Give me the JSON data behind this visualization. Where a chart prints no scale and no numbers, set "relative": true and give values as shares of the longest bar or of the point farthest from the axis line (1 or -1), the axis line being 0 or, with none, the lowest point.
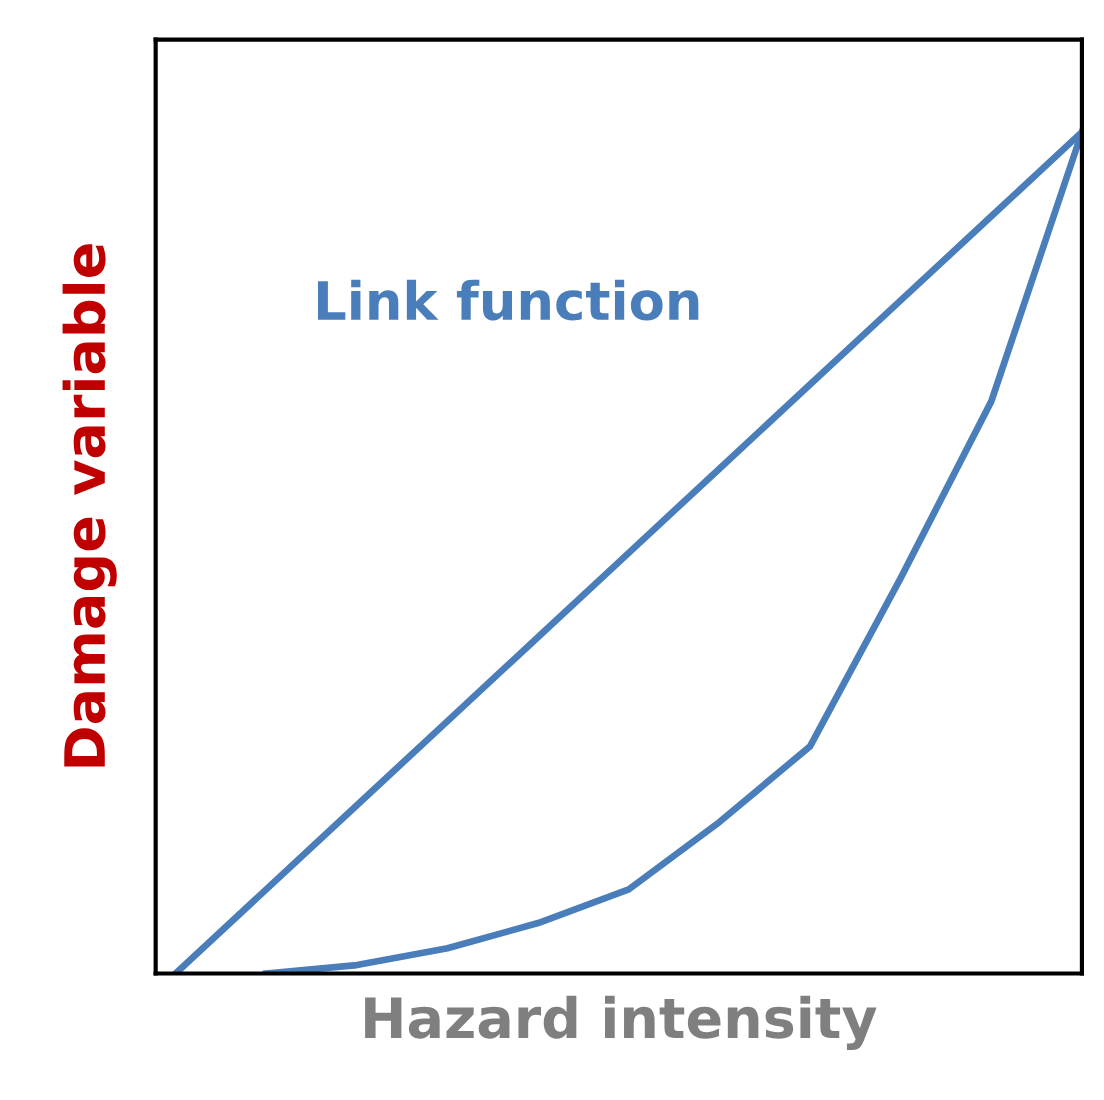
{
  "chart_data": {
    "type": "line",
    "relative": true,
    "xlabel": "Hazard intensity",
    "ylabel": "Damage variable",
    "annotations": [
      "Link function"
    ],
    "categories": [
      null,
      null,
      null,
      null,
      null,
      null,
      null,
      null,
      null,
      null,
      null
    ],
    "series": [
      {
        "color": "#4a7ebb",
        "values": [
          0,
          0.1,
          0.2,
          0.3,
          0.4,
          0.5,
          0.6,
          0.7,
          0.8,
          0.9,
          1
        ]
      },
      {
        "color": "#4a7ebb",
        "values": [
          null,
          0,
          0.01,
          0.03,
          0.06,
          0.1,
          0.18,
          0.27,
          0.47,
          0.68,
          1
        ]
      }
    ],
    "grid": false,
    "legend": false,
    "marker": "none",
    "line_style": "solid",
    "tick_labels": false
  }
}
